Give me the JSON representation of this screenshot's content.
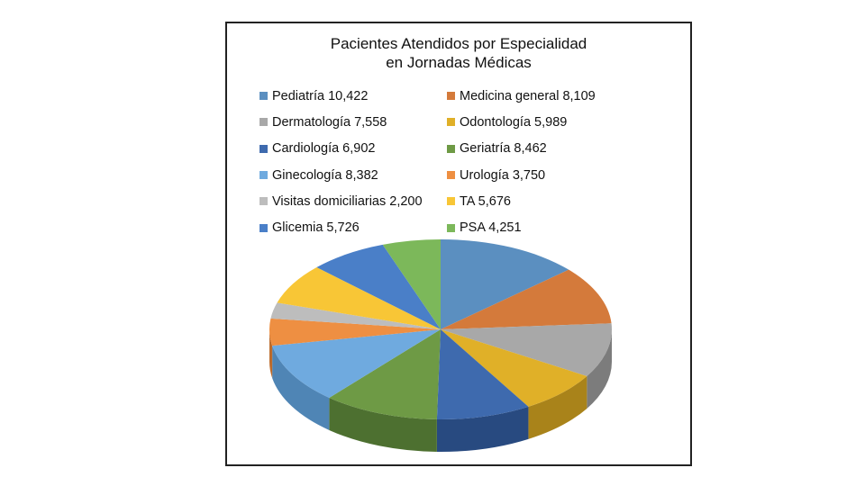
{
  "chart_data": {
    "type": "pie",
    "style": "3d",
    "title_line1": "Pacientes Atendidos por Especialidad",
    "title_line2": "en Jornadas Médicas",
    "legend_position": "top",
    "slices": [
      {
        "label": "Pediatría",
        "value": 10422,
        "value_text": "10,422",
        "color": "#5B8FC0",
        "side": "#3F6A94"
      },
      {
        "label": "Medicina general",
        "value": 8109,
        "value_text": "8,109",
        "color": "#D47A3B",
        "side": "#A35A27"
      },
      {
        "label": "Dermatología",
        "value": 7558,
        "value_text": "7,558",
        "color": "#A8A8A8",
        "side": "#7C7C7C"
      },
      {
        "label": "Odontología",
        "value": 5989,
        "value_text": "5,989",
        "color": "#E0B028",
        "side": "#A9831A"
      },
      {
        "label": "Cardiología",
        "value": 6902,
        "value_text": "6,902",
        "color": "#3E6AAE",
        "side": "#284A80"
      },
      {
        "label": "Geriatría",
        "value": 8462,
        "value_text": "8,462",
        "color": "#6E9A45",
        "side": "#4D7030"
      },
      {
        "label": "Ginecología",
        "value": 8382,
        "value_text": "8,382",
        "color": "#6FAADF",
        "side": "#4F85B5"
      },
      {
        "label": "Urología",
        "value": 3750,
        "value_text": "3,750",
        "color": "#EE8F42",
        "side": "#BC6B2C"
      },
      {
        "label": "Visitas domiciliarias",
        "value": 2200,
        "value_text": "2,200",
        "color": "#BDBDBD",
        "side": "#909090"
      },
      {
        "label": "TA",
        "value": 5676,
        "value_text": "5,676",
        "color": "#F8C636",
        "side": "#C49820"
      },
      {
        "label": "Glicemia",
        "value": 5726,
        "value_text": "5,726",
        "color": "#4A7FC8",
        "side": "#335D96"
      },
      {
        "label": "PSA",
        "value": 4251,
        "value_text": "4,251",
        "color": "#7CB85A",
        "side": "#588A3E"
      }
    ]
  }
}
